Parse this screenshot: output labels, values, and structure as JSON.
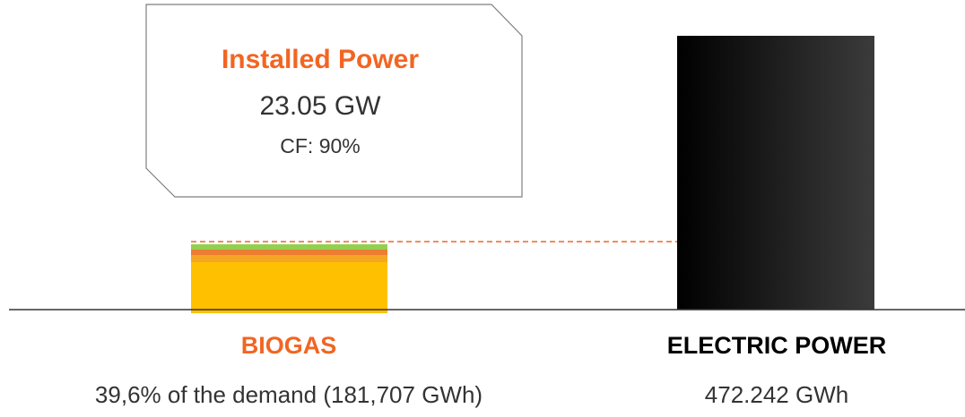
{
  "callout": {
    "title": "Installed Power",
    "value": "23.05 GW",
    "capacity_factor": "CF: 90%"
  },
  "left": {
    "label": "BIOGAS",
    "caption": "39,6% of the demand (181,707 GWh)"
  },
  "right": {
    "label": "ELECTRIC POWER",
    "caption": "472.242 GWh"
  }
}
